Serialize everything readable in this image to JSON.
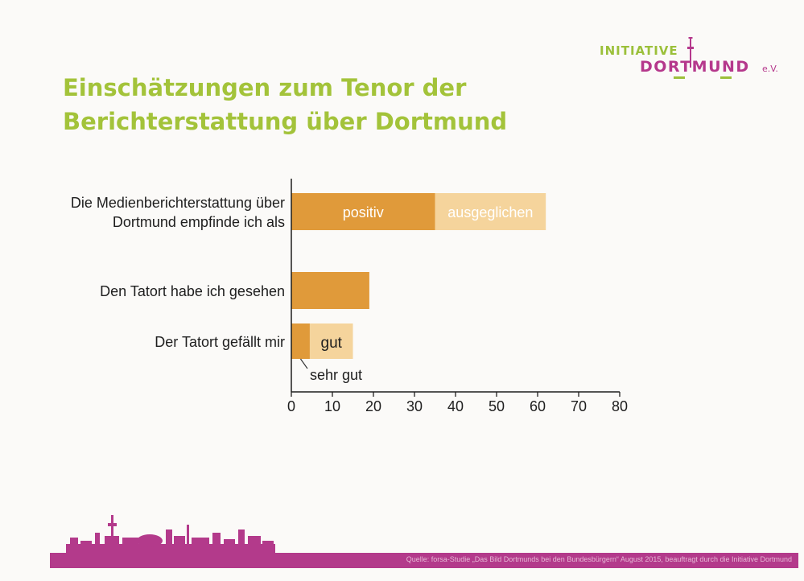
{
  "title_line1": "Einschätzungen zum Tenor der",
  "title_line2": "Berichterstattung über Dortmund",
  "logo": {
    "top": "INITIATIVE",
    "bottom": "DORTMUND",
    "suffix": "e.V."
  },
  "source": "Quelle: forsa-Studie „Das Bild Dortmunds bei den Bundesbürgern“ August 2015, beauftragt durch die Initiative Dortmund",
  "colors": {
    "title": "#a3c33a",
    "dark_bar": "#e09a3a",
    "light_bar": "#f5d49c",
    "band": "#b33a8b"
  },
  "chart_data": {
    "type": "bar",
    "orientation": "horizontal",
    "stacked": true,
    "categories": [
      [
        "Die Medienberichterstattung über",
        "Dortmund empfinde ich als"
      ],
      [
        "Den Tatort habe ich gesehen"
      ],
      [
        "Der Tatort gefällt mir"
      ]
    ],
    "segments": [
      [
        {
          "label": "positiv",
          "value": 35,
          "shade": "dark"
        },
        {
          "label": "ausgeglichen",
          "value": 27,
          "shade": "light"
        }
      ],
      [
        {
          "label": "",
          "value": 19,
          "shade": "dark"
        }
      ],
      [
        {
          "label": "sehr gut",
          "value": 4.5,
          "shade": "dark"
        },
        {
          "label": "gut",
          "value": 10.5,
          "shade": "light"
        }
      ]
    ],
    "xlim": [
      0,
      80
    ],
    "xticks": [
      0,
      10,
      20,
      30,
      40,
      50,
      60,
      70,
      80
    ],
    "grid": false,
    "legend": "none"
  }
}
